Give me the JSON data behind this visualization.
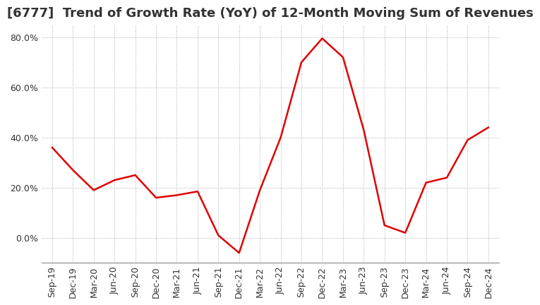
{
  "title": "[6777]  Trend of Growth Rate (YoY) of 12-Month Moving Sum of Revenues",
  "x_labels": [
    "Sep-19",
    "Dec-19",
    "Mar-20",
    "Jun-20",
    "Sep-20",
    "Dec-20",
    "Mar-21",
    "Jun-21",
    "Sep-21",
    "Dec-21",
    "Mar-22",
    "Jun-22",
    "Sep-22",
    "Dec-22",
    "Mar-23",
    "Jun-23",
    "Sep-23",
    "Dec-23",
    "Mar-24",
    "Jun-24",
    "Sep-24",
    "Dec-24"
  ],
  "y_values": [
    36.0,
    27.0,
    19.0,
    23.0,
    25.0,
    16.0,
    17.0,
    18.5,
    1.0,
    -6.0,
    19.0,
    40.0,
    70.0,
    79.5,
    72.0,
    43.0,
    5.0,
    2.0,
    22.0,
    24.0,
    39.0,
    44.0
  ],
  "line_color": "#e00000",
  "ylim": [
    -10,
    85
  ],
  "yticks": [
    0.0,
    20.0,
    40.0,
    60.0,
    80.0
  ],
  "background_color": "#ffffff",
  "grid_color": "#aaaaaa",
  "title_fontsize": 13,
  "tick_fontsize": 9
}
